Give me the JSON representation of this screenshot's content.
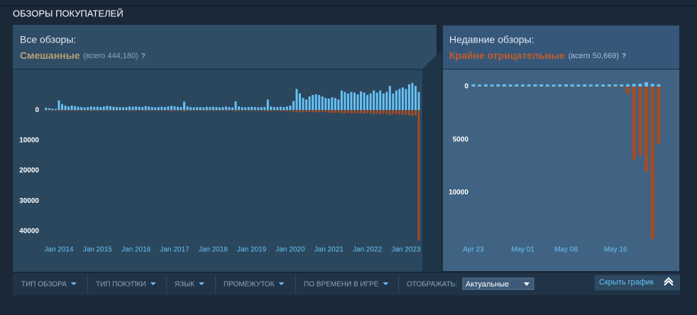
{
  "header": {
    "title": "ОБЗОРЫ ПОКУПАТЕЛЕЙ"
  },
  "chart_data": [
    {
      "type": "bar",
      "title": "Все обзоры:",
      "summary": "Смешанные",
      "total": "(всего 444,180)",
      "help": "?",
      "categories": [
        null,
        null,
        null,
        null,
        "Jan 2014",
        null,
        null,
        null,
        null,
        null,
        null,
        null,
        null,
        null,
        null,
        null,
        "Jan 2015",
        null,
        null,
        null,
        null,
        null,
        null,
        null,
        null,
        null,
        null,
        null,
        "Jan 2016",
        null,
        null,
        null,
        null,
        null,
        null,
        null,
        null,
        null,
        null,
        null,
        "Jan 2017",
        null,
        null,
        null,
        null,
        null,
        null,
        null,
        null,
        null,
        null,
        null,
        "Jan 2018",
        null,
        null,
        null,
        null,
        null,
        null,
        null,
        null,
        null,
        null,
        null,
        "Jan 2019",
        null,
        null,
        null,
        null,
        null,
        null,
        null,
        null,
        null,
        null,
        null,
        "Jan 2020",
        null,
        null,
        null,
        null,
        null,
        null,
        null,
        null,
        null,
        null,
        null,
        "Jan 2021",
        null,
        null,
        null,
        null,
        null,
        null,
        null,
        null,
        null,
        null,
        null,
        "Jan 2022",
        null,
        null,
        null,
        null,
        null,
        null,
        null,
        null,
        null,
        null,
        null,
        "Jan 2023",
        null,
        null,
        null,
        null
      ],
      "series": [
        {
          "color": "#66c0f4",
          "values": [
            800,
            600,
            500,
            400,
            3200,
            2000,
            1500,
            1200,
            1500,
            1300,
            1100,
            1000,
            900,
            1000,
            1200,
            1100,
            1100,
            1000,
            1200,
            1400,
            1300,
            1100,
            1000,
            1000,
            900,
            1000,
            1200,
            1100,
            1200,
            1100,
            1000,
            1300,
            1200,
            1000,
            900,
            1000,
            1100,
            1000,
            1200,
            1400,
            1300,
            1100,
            1000,
            2800,
            1200,
            1000,
            900,
            1000,
            1000,
            900,
            1100,
            1000,
            1100,
            1000,
            900,
            1000,
            1200,
            1000,
            900,
            2900,
            1200,
            1000,
            900,
            1000,
            1100,
            1000,
            900,
            1000,
            1000,
            3500,
            1200,
            1000,
            1000,
            1100,
            1000,
            1200,
            1500,
            3000,
            7000,
            5500,
            4000,
            3500,
            4500,
            5000,
            5200,
            5000,
            4500,
            4000,
            3800,
            4200,
            4000,
            3500,
            6500,
            6000,
            5500,
            6000,
            5800,
            5200,
            6200,
            5800,
            5000,
            5500,
            6500,
            5800,
            6500,
            5500,
            6000,
            8000,
            5500,
            6500,
            7000,
            7500,
            7000,
            8500,
            9000,
            8000,
            6000
          ]
        },
        {
          "color": "#a34c25",
          "values": [
            100,
            100,
            150,
            150,
            300,
            250,
            200,
            200,
            250,
            200,
            200,
            200,
            150,
            200,
            250,
            200,
            200,
            200,
            250,
            250,
            200,
            200,
            200,
            200,
            150,
            200,
            250,
            200,
            250,
            200,
            200,
            250,
            200,
            200,
            150,
            200,
            200,
            200,
            250,
            300,
            250,
            200,
            200,
            400,
            250,
            200,
            200,
            200,
            200,
            200,
            250,
            200,
            250,
            200,
            200,
            200,
            250,
            200,
            200,
            450,
            250,
            200,
            200,
            250,
            250,
            250,
            200,
            250,
            250,
            500,
            300,
            300,
            300,
            350,
            350,
            400,
            400,
            500,
            800,
            700,
            600,
            600,
            650,
            700,
            750,
            700,
            700,
            700,
            800,
            900,
            900,
            850,
            1100,
            1000,
            1000,
            1100,
            1050,
            1000,
            1100,
            1100,
            1000,
            1100,
            1300,
            1200,
            1300,
            1200,
            1300,
            1600,
            1300,
            1400,
            1500,
            1500,
            1500,
            1700,
            1900,
            1800,
            43000
          ]
        }
      ],
      "ylim": [
        -12000,
        44000
      ],
      "yticks": [
        0,
        10000,
        20000,
        30000,
        40000
      ]
    },
    {
      "type": "bar",
      "title": "Недавние обзоры:",
      "summary": "Крайне отрицательные",
      "total": "(всего 50,669)",
      "help": "?",
      "categories": [
        "Apr 23",
        null,
        null,
        null,
        null,
        null,
        null,
        null,
        "May 01",
        null,
        null,
        null,
        null,
        null,
        null,
        "May 08",
        null,
        null,
        null,
        null,
        null,
        null,
        null,
        "May 16",
        null,
        null,
        null,
        null,
        null,
        null,
        null
      ],
      "series": [
        {
          "color": "#66c0f4",
          "values": [
            200,
            180,
            200,
            190,
            210,
            200,
            180,
            200,
            190,
            200,
            210,
            200,
            190,
            180,
            200,
            210,
            200,
            190,
            200,
            180,
            200,
            190,
            200,
            210,
            200,
            220,
            250,
            260,
            400,
            250,
            200
          ]
        },
        {
          "color": "#a34c25",
          "values": [
            20,
            20,
            30,
            20,
            20,
            30,
            20,
            20,
            30,
            20,
            20,
            30,
            20,
            20,
            30,
            20,
            20,
            30,
            20,
            20,
            30,
            20,
            40,
            50,
            80,
            700,
            6900,
            6500,
            8000,
            14400,
            5400
          ]
        }
      ],
      "ylim": [
        -600,
        14800
      ],
      "yticks": [
        0,
        5000,
        10000
      ]
    }
  ],
  "filters": [
    "ТИП ОБЗОРА",
    "ТИП ПОКУПКИ",
    "ЯЗЫК",
    "ПРОМЕЖУТОК",
    "ПО ВРЕМЕНИ В ИГРЕ"
  ],
  "display": {
    "label": "ОТОБРАЖАТЬ:",
    "value": "Актуальные"
  },
  "hide_button": "Скрыть график"
}
